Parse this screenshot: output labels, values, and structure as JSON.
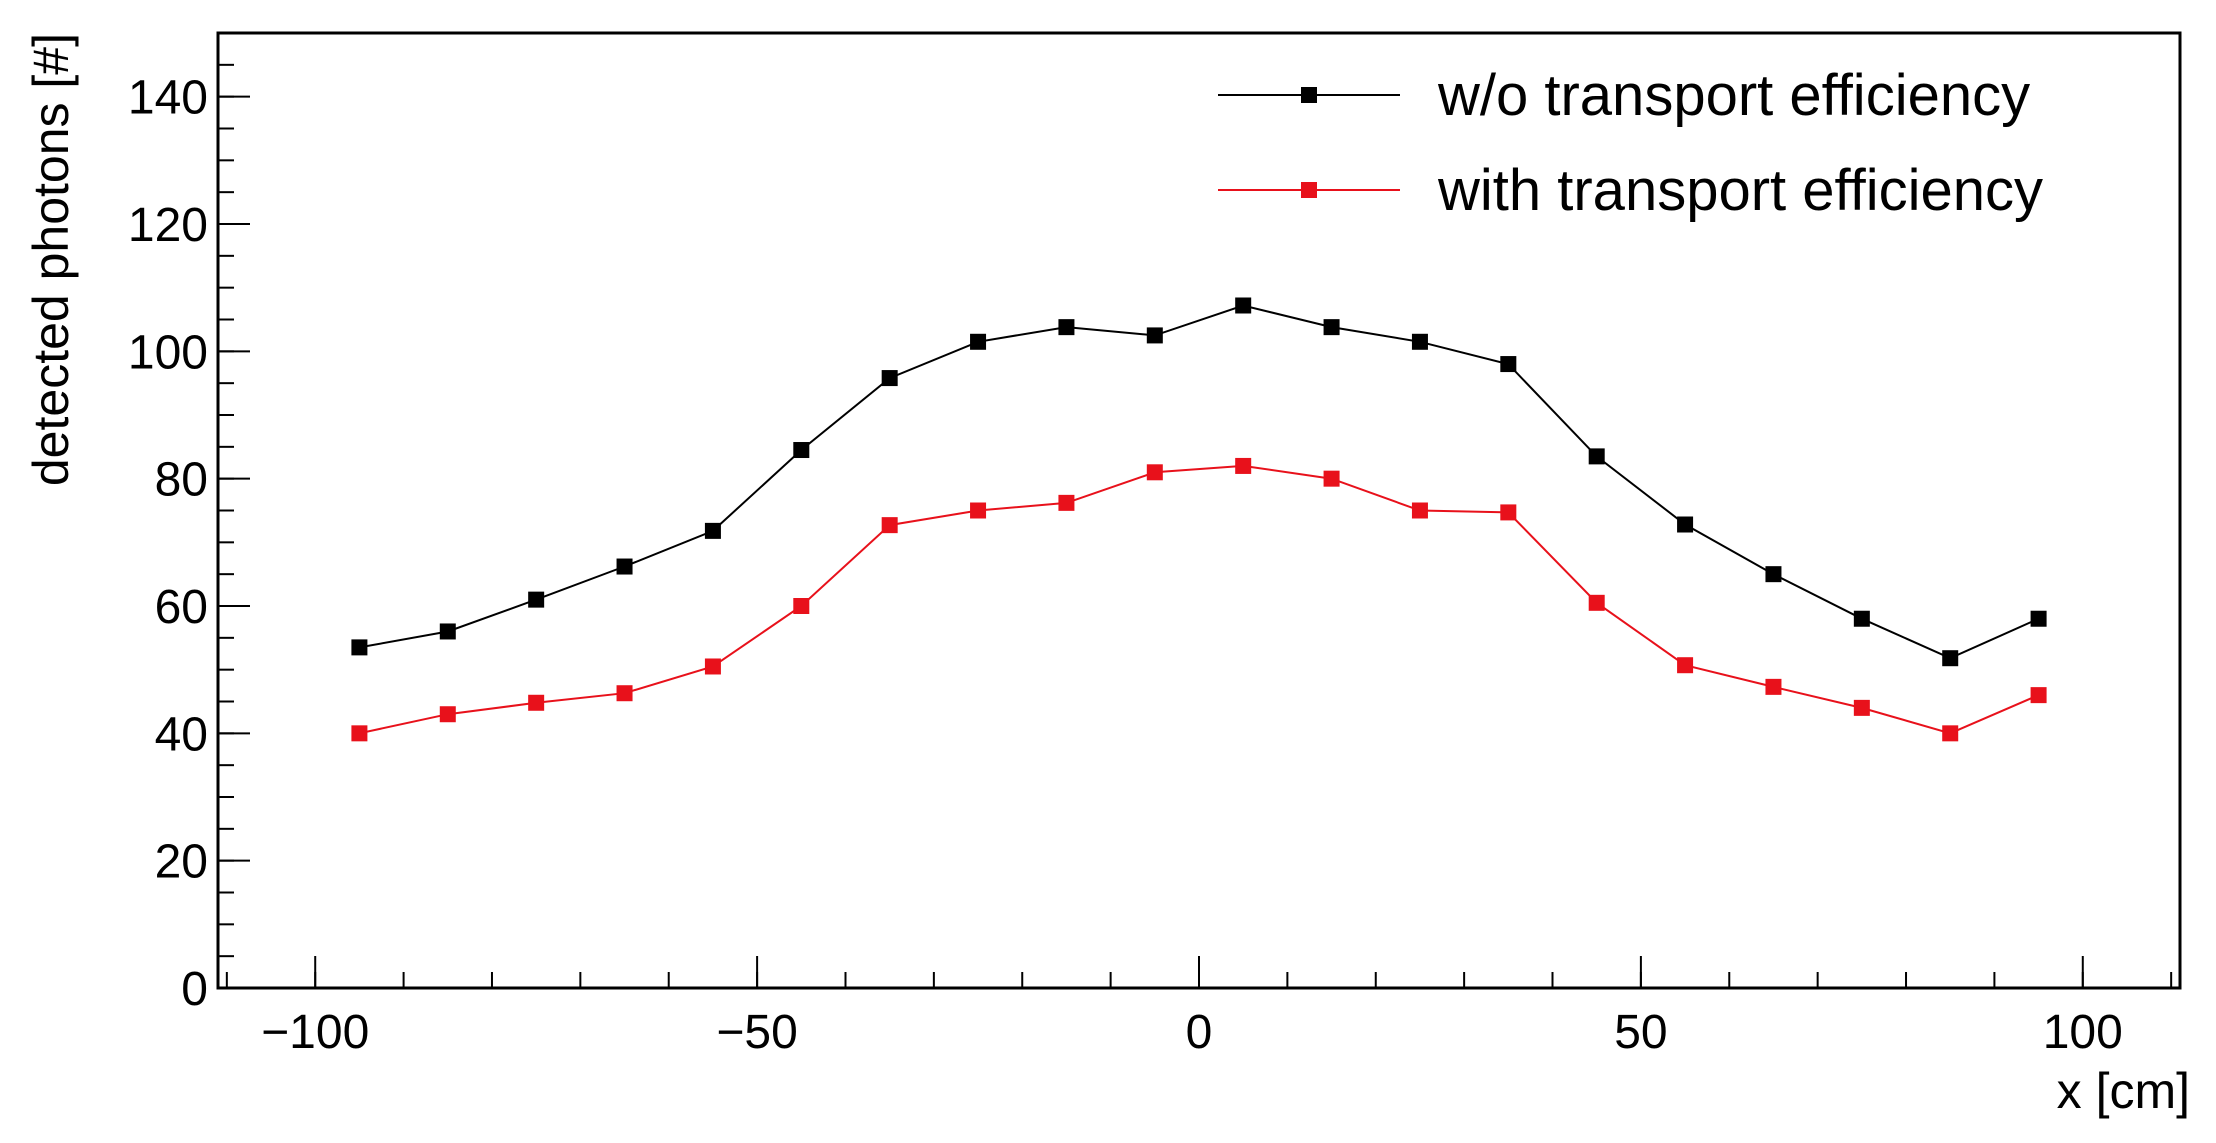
{
  "chart_data": {
    "type": "line",
    "xlabel": "x [cm]",
    "ylabel": "detected photons [#]",
    "xlim": [
      -111,
      111
    ],
    "ylim": [
      0,
      150
    ],
    "x_major_ticks": [
      -100,
      -50,
      0,
      50,
      100
    ],
    "x_minor_step": 10,
    "y_major_ticks": [
      0,
      20,
      40,
      60,
      80,
      100,
      120,
      140
    ],
    "y_minor_step": 5,
    "grid": false,
    "legend_position": "top-right",
    "x": [
      -95,
      -85,
      -75,
      -65,
      -55,
      -45,
      -35,
      -25,
      -15,
      -5,
      5,
      15,
      25,
      35,
      45,
      55,
      65,
      75,
      85,
      95
    ],
    "series": [
      {
        "name": "w/o transport efficiency",
        "color": "#000000",
        "values": [
          53.5,
          56,
          61,
          66.2,
          71.8,
          84.5,
          95.8,
          101.5,
          103.8,
          102.5,
          107.2,
          103.8,
          101.5,
          98,
          83.5,
          72.8,
          65,
          58,
          51.8,
          58
        ]
      },
      {
        "name": "with transport efficiency",
        "color": "#e8111b",
        "values": [
          40,
          43,
          44.8,
          46.3,
          50.5,
          60,
          72.7,
          75,
          76.2,
          81,
          82,
          80,
          75,
          74.7,
          60.5,
          50.7,
          47.3,
          44,
          40,
          46
        ]
      }
    ]
  }
}
